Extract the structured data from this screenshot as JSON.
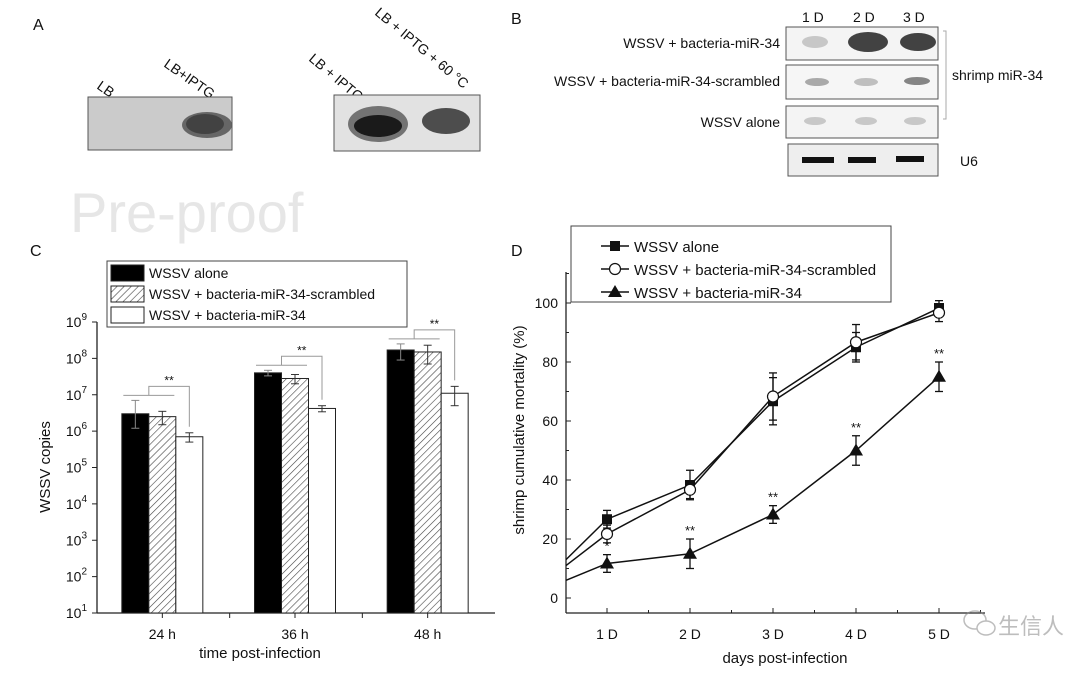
{
  "panel_a": {
    "label": "A",
    "blot1_lanes": [
      "LB",
      "LB+IPTG"
    ],
    "blot2_lanes": [
      "LB + IPTG",
      "LB + IPTG + 60 °C"
    ]
  },
  "panel_b": {
    "label": "B",
    "lanes": [
      "1 D",
      "2 D",
      "3 D"
    ],
    "rows": [
      "WSSV + bacteria-miR-34",
      "WSSV + bacteria-miR-34-scrambled",
      "WSSV alone"
    ],
    "brace_label": "shrimp miR-34",
    "control_label": "U6"
  },
  "watermark": "Pre-proof",
  "logo_text": "生信人",
  "chart_data": [
    {
      "panel": "C",
      "type": "bar",
      "scale": "log",
      "categories": [
        "24 h",
        "36 h",
        "48 h"
      ],
      "xlabel": "time post-infection",
      "ylabel": "WSSV copies",
      "ylim": [
        10,
        1000000000
      ],
      "yticks": [
        "1",
        "2",
        "3",
        "4",
        "5",
        "6",
        "7",
        "8",
        "9"
      ],
      "ytick_base": "10",
      "legend_position": "top-left",
      "series": [
        {
          "name": "WSSV alone",
          "fill": "#000000",
          "values": [
            3000000,
            40000000,
            170000000
          ],
          "errors": [
            4000000,
            7000000,
            80000000
          ]
        },
        {
          "name": "WSSV + bacteria-miR-34-scrambled",
          "fill": "hatched",
          "values": [
            2500000,
            28000000,
            150000000
          ],
          "errors": [
            1000000,
            8000000,
            80000000
          ]
        },
        {
          "name": "WSSV + bacteria-miR-34",
          "fill": "#ffffff",
          "values": [
            700000,
            4200000,
            11000000
          ],
          "errors": [
            200000,
            800000,
            6000000
          ]
        }
      ],
      "significance": [
        "**",
        "**",
        "**"
      ]
    },
    {
      "panel": "D",
      "type": "line",
      "x": [
        "1 D",
        "2 D",
        "3 D",
        "4 D",
        "5 D"
      ],
      "xlabel": "days post-infection",
      "ylabel": "shrimp cumulative mortality (%)",
      "ylim": [
        -5,
        110
      ],
      "yticks": [
        0,
        20,
        40,
        60,
        80,
        100
      ],
      "legend_position": "top",
      "series": [
        {
          "name": "WSSV alone",
          "marker": "filled-square",
          "start": 13,
          "values": [
            26.7,
            38.3,
            66.7,
            85,
            98.3
          ],
          "errors": [
            3,
            5,
            8,
            5,
            2.5
          ]
        },
        {
          "name": "WSSV + bacteria-miR-34-scrambled",
          "marker": "open-circle",
          "start": 11,
          "values": [
            21.7,
            36.7,
            68.3,
            86.7,
            96.7
          ],
          "errors": [
            3,
            3,
            8,
            6,
            3
          ]
        },
        {
          "name": "WSSV + bacteria-miR-34",
          "marker": "filled-triangle",
          "start": 6,
          "values": [
            11.7,
            15,
            28.3,
            50,
            75
          ],
          "errors": [
            3,
            5,
            3,
            5,
            5
          ]
        }
      ],
      "significance": [
        "*",
        "**",
        "**",
        "**",
        "**"
      ]
    }
  ]
}
